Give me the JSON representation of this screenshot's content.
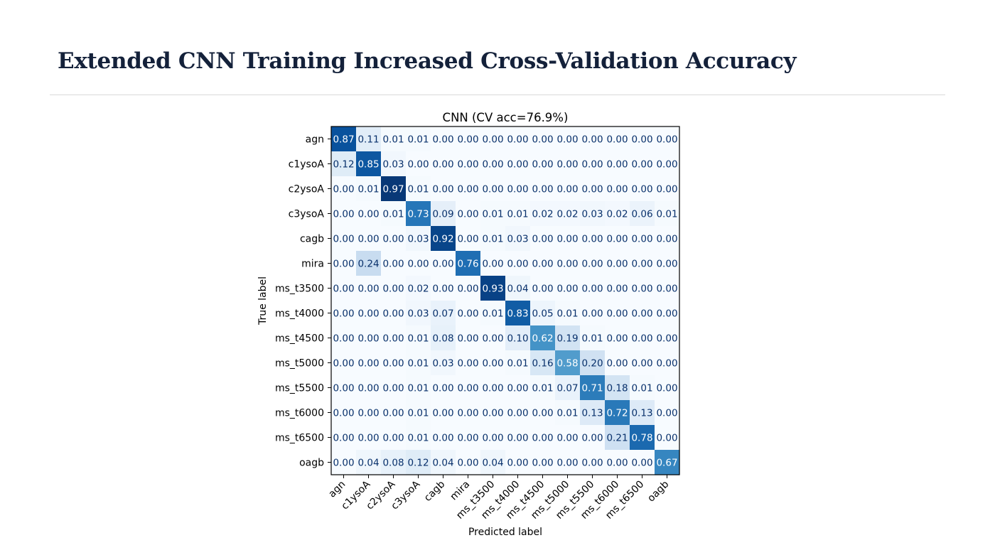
{
  "slide": {
    "title": "Extended CNN Training Increased Cross-Validation Accuracy"
  },
  "chart_data": {
    "type": "heatmap",
    "title": "CNN  (CV acc=76.9%)",
    "xlabel": "Predicted label",
    "ylabel": "True label",
    "colormap": "Blues",
    "value_range": [
      0,
      1
    ],
    "labels": [
      "agn",
      "c1ysoA",
      "c2ysoA",
      "c3ysoA",
      "cagb",
      "mira",
      "ms_t3500",
      "ms_t4000",
      "ms_t4500",
      "ms_t5000",
      "ms_t5500",
      "ms_t6000",
      "ms_t6500",
      "oagb"
    ],
    "matrix": [
      [
        0.87,
        0.11,
        0.01,
        0.01,
        0.0,
        0.0,
        0.0,
        0.0,
        0.0,
        0.0,
        0.0,
        0.0,
        0.0,
        0.0
      ],
      [
        0.12,
        0.85,
        0.03,
        0.0,
        0.0,
        0.0,
        0.0,
        0.0,
        0.0,
        0.0,
        0.0,
        0.0,
        0.0,
        0.0
      ],
      [
        0.0,
        0.01,
        0.97,
        0.01,
        0.0,
        0.0,
        0.0,
        0.0,
        0.0,
        0.0,
        0.0,
        0.0,
        0.0,
        0.0
      ],
      [
        0.0,
        0.0,
        0.01,
        0.73,
        0.09,
        0.0,
        0.01,
        0.01,
        0.02,
        0.02,
        0.03,
        0.02,
        0.06,
        0.01
      ],
      [
        0.0,
        0.0,
        0.0,
        0.03,
        0.92,
        0.0,
        0.01,
        0.03,
        0.0,
        0.0,
        0.0,
        0.0,
        0.0,
        0.0
      ],
      [
        0.0,
        0.24,
        0.0,
        0.0,
        0.0,
        0.76,
        0.0,
        0.0,
        0.0,
        0.0,
        0.0,
        0.0,
        0.0,
        0.0
      ],
      [
        0.0,
        0.0,
        0.0,
        0.02,
        0.0,
        0.0,
        0.93,
        0.04,
        0.0,
        0.0,
        0.0,
        0.0,
        0.0,
        0.0
      ],
      [
        0.0,
        0.0,
        0.0,
        0.03,
        0.07,
        0.0,
        0.01,
        0.83,
        0.05,
        0.01,
        0.0,
        0.0,
        0.0,
        0.0
      ],
      [
        0.0,
        0.0,
        0.0,
        0.01,
        0.08,
        0.0,
        0.0,
        0.1,
        0.62,
        0.19,
        0.01,
        0.0,
        0.0,
        0.0
      ],
      [
        0.0,
        0.0,
        0.0,
        0.01,
        0.03,
        0.0,
        0.0,
        0.01,
        0.16,
        0.58,
        0.2,
        0.0,
        0.0,
        0.0
      ],
      [
        0.0,
        0.0,
        0.0,
        0.01,
        0.0,
        0.0,
        0.0,
        0.0,
        0.01,
        0.07,
        0.71,
        0.18,
        0.01,
        0.0
      ],
      [
        0.0,
        0.0,
        0.0,
        0.01,
        0.0,
        0.0,
        0.0,
        0.0,
        0.0,
        0.01,
        0.13,
        0.72,
        0.13,
        0.0
      ],
      [
        0.0,
        0.0,
        0.0,
        0.01,
        0.0,
        0.0,
        0.0,
        0.0,
        0.0,
        0.0,
        0.0,
        0.21,
        0.78,
        0.0
      ],
      [
        0.0,
        0.04,
        0.08,
        0.12,
        0.04,
        0.0,
        0.04,
        0.0,
        0.0,
        0.0,
        0.0,
        0.0,
        0.0,
        0.67
      ]
    ]
  }
}
